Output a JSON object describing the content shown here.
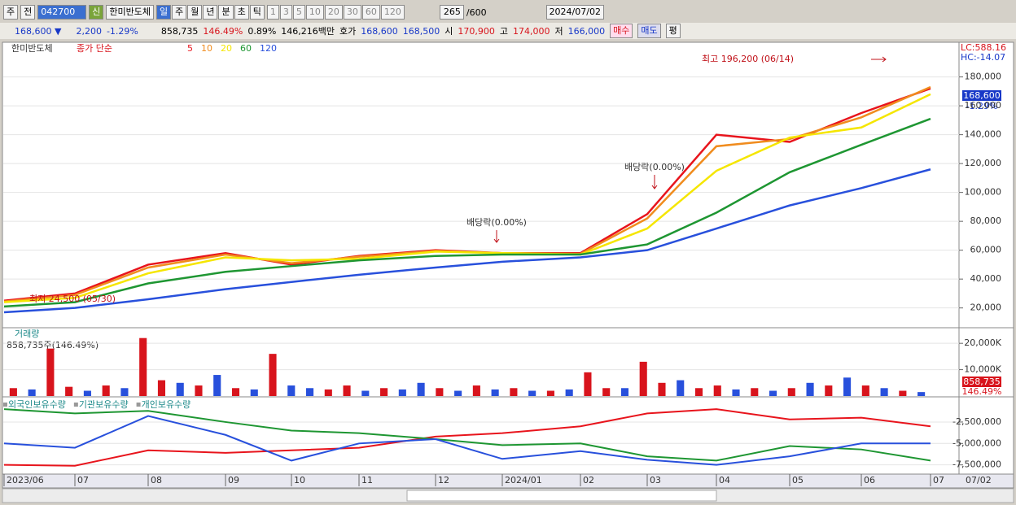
{
  "toolbar": {
    "type_select": "주",
    "prev": "전",
    "code": "042700",
    "credit": "신",
    "name": "한미반도체",
    "periods": [
      "일",
      "주",
      "월",
      "년",
      "분",
      "초",
      "틱"
    ],
    "intervals": [
      "1",
      "3",
      "5",
      "10",
      "20",
      "30",
      "60",
      "120"
    ],
    "count": "265",
    "count_max": "/600",
    "date": "2024/07/02"
  },
  "info_bar": {
    "price": "168,600 ▼",
    "change": "2,200",
    "change_pct": "-1.29%",
    "volume": "858,735",
    "volume_pct": "146.49%",
    "turnover": "0.89%",
    "amount": "146,216백만",
    "quote_label": "호가",
    "ask": "168,600",
    "bid": "168,500",
    "open_label": "시",
    "open": "170,900",
    "high_label": "고",
    "high": "174,000",
    "low_label": "저",
    "low": "166,000",
    "buy": "매수",
    "sell": "매도",
    "avg": "평"
  },
  "chart_data": [
    {
      "type": "line",
      "title": "한미반도체",
      "legend_title": "종가 단순",
      "categories": [
        "2023/06",
        "07",
        "08",
        "09",
        "10",
        "11",
        "12",
        "2024/01",
        "02",
        "03",
        "04",
        "05",
        "06",
        "07"
      ],
      "series": [
        {
          "name": "5",
          "color": "#e8141c",
          "values": [
            25000,
            30000,
            50000,
            58000,
            50000,
            56000,
            60000,
            58000,
            58000,
            85000,
            140000,
            135000,
            155000,
            172000
          ]
        },
        {
          "name": "10",
          "color": "#f08c1e",
          "values": [
            24500,
            29000,
            48000,
            57000,
            51000,
            55500,
            59500,
            58000,
            57500,
            82000,
            132000,
            137000,
            152000,
            173000
          ]
        },
        {
          "name": "20",
          "color": "#f5e600",
          "values": [
            24000,
            27000,
            44000,
            55000,
            53000,
            54000,
            59000,
            58000,
            57000,
            75000,
            115000,
            138000,
            145000,
            168000
          ]
        },
        {
          "name": "60",
          "color": "#1e9632",
          "values": [
            21000,
            24000,
            37000,
            45000,
            49000,
            53000,
            56000,
            57000,
            57000,
            64000,
            86000,
            114000,
            133000,
            151000
          ]
        },
        {
          "name": "120",
          "color": "#2850dc",
          "values": [
            17000,
            20000,
            26000,
            33000,
            38000,
            43000,
            48000,
            52000,
            55000,
            60000,
            75000,
            91000,
            103000,
            116000
          ]
        }
      ],
      "ylim": [
        6300,
        204000
      ],
      "yticks": [
        {
          "value": 20000,
          "label": "20,000"
        },
        {
          "value": 40000,
          "label": "40,000"
        },
        {
          "value": 60000,
          "label": "60,000"
        },
        {
          "value": 80000,
          "label": "80,000"
        },
        {
          "value": 100000,
          "label": "100,000"
        },
        {
          "value": 120000,
          "label": "120,000"
        },
        {
          "value": 140000,
          "label": "140,000"
        },
        {
          "value": 160000,
          "label": "160,000"
        },
        {
          "value": 180000,
          "label": "180,000"
        }
      ],
      "annotations": [
        "최고 196,200 (06/14)",
        "최저 24,500 (05/30)",
        "배당락(0.00%)",
        "배당락(0.00%)"
      ],
      "right_labels": [
        "LC:588.16",
        "HC:-14.07"
      ],
      "last_price": "168,600",
      "last_change": "-1.29%",
      "cursor_date": "07/02"
    },
    {
      "type": "bar",
      "title": "거래량",
      "subtitle": "858,735주(146.49%)",
      "values": [
        3000,
        2500,
        18000,
        3500,
        2000,
        4000,
        3000,
        22000,
        6000,
        5000,
        4000,
        8000,
        3000,
        2500,
        16000,
        4000,
        3000,
        2500,
        4000,
        2000,
        3000,
        2500,
        5000,
        3000,
        2000,
        4000,
        2500,
        3000,
        2000,
        2000,
        2500,
        9000,
        3000,
        3000,
        13000,
        5000,
        6000,
        3000,
        4000,
        2500,
        3000,
        2000,
        3000,
        5000,
        4000,
        7000,
        4000,
        3000,
        2000,
        1500
      ],
      "colors": [
        "#d8141c",
        "#2850dc",
        "#d8141c",
        "#d8141c",
        "#2850dc",
        "#d8141c",
        "#2850dc",
        "#d8141c",
        "#d8141c",
        "#2850dc",
        "#d8141c",
        "#2850dc",
        "#d8141c",
        "#2850dc",
        "#d8141c",
        "#2850dc",
        "#2850dc",
        "#d8141c",
        "#d8141c",
        "#2850dc",
        "#d8141c",
        "#2850dc",
        "#2850dc",
        "#d8141c",
        "#2850dc",
        "#d8141c",
        "#2850dc",
        "#d8141c",
        "#2850dc",
        "#d8141c",
        "#2850dc",
        "#d8141c",
        "#d8141c",
        "#2850dc",
        "#d8141c",
        "#d8141c",
        "#2850dc",
        "#d8141c",
        "#d8141c",
        "#2850dc",
        "#d8141c",
        "#2850dc",
        "#d8141c",
        "#2850dc",
        "#d8141c",
        "#2850dc",
        "#d8141c",
        "#2850dc",
        "#d8141c",
        "#2850dc"
      ],
      "ylim": [
        0,
        25300
      ],
      "yticks": [
        {
          "value": 10000,
          "label": "10,000K"
        },
        {
          "value": 20000,
          "label": "20,000K"
        }
      ],
      "last_volume": "858,735",
      "last_volume_pct": "146.49%"
    },
    {
      "type": "line",
      "series": [
        {
          "name": "외국인보유수량",
          "color": "#e8141c",
          "values": [
            -7500000,
            -7600000,
            -5800000,
            -6100000,
            -5800000,
            -5500000,
            -4200000,
            -3800000,
            -3000000,
            -1500000,
            -1000000,
            -2200000,
            -2000000,
            -3000000
          ]
        },
        {
          "name": "기관보유수량",
          "color": "#1e9632",
          "values": [
            -1000000,
            -1500000,
            -1200000,
            -2500000,
            -3500000,
            -3800000,
            -4500000,
            -5200000,
            -5000000,
            -6500000,
            -7000000,
            -5300000,
            -5700000,
            -7000000
          ]
        },
        {
          "name": "개인보유수량",
          "color": "#2850dc",
          "values": [
            -5000000,
            -5500000,
            -1800000,
            -4000000,
            -7000000,
            -5000000,
            -4500000,
            -6800000,
            -5900000,
            -6900000,
            -7500000,
            -6500000,
            -5000000,
            -5000000
          ]
        }
      ],
      "ylim": [
        -8480000,
        340000
      ],
      "yticks": [
        {
          "value": -7500000,
          "label": "-7,500,000"
        },
        {
          "value": -5000000,
          "label": "-5,000,000"
        },
        {
          "value": -2500000,
          "label": "-2,500,000"
        }
      ]
    }
  ]
}
